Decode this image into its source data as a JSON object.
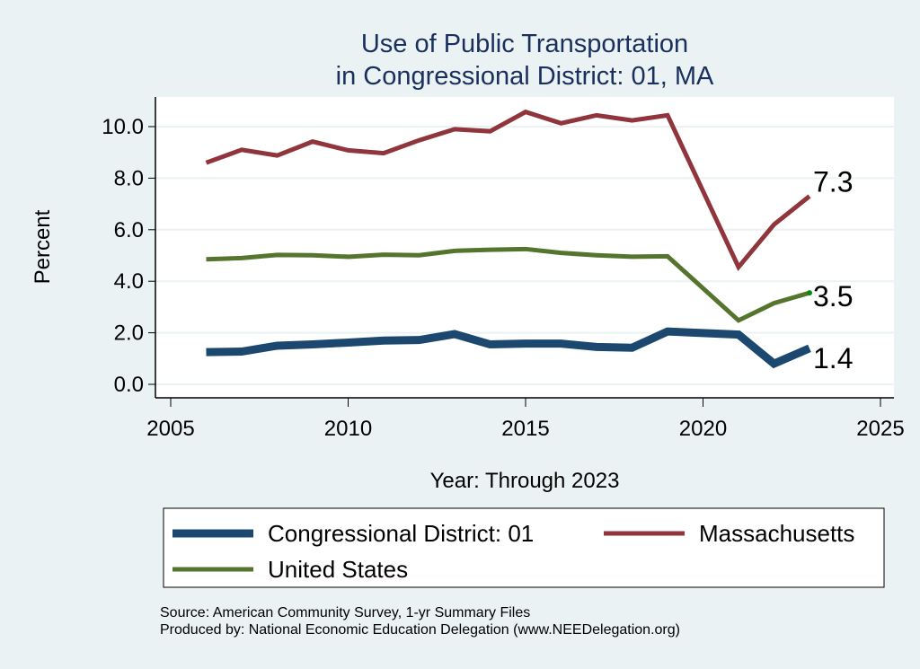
{
  "chart_data": {
    "type": "line",
    "title": [
      "Use of Public Transportation",
      "in Congressional District: 01, MA"
    ],
    "xlabel": "Year: Through 2023",
    "ylabel": "Percent",
    "xlim": [
      2005,
      2025
    ],
    "ylim": [
      0,
      10.5
    ],
    "xticks": [
      2005,
      2010,
      2015,
      2020,
      2025
    ],
    "yticks": [
      0,
      2,
      4,
      6,
      8,
      10
    ],
    "ytick_labels": [
      "0.0",
      "2.0",
      "4.0",
      "6.0",
      "8.0",
      "10.0"
    ],
    "grid": true,
    "legend_position": "bottom",
    "x": [
      2006,
      2007,
      2008,
      2009,
      2010,
      2011,
      2012,
      2013,
      2014,
      2015,
      2016,
      2017,
      2018,
      2019,
      2021,
      2022,
      2023
    ],
    "series": [
      {
        "name": "Congressional District: 01",
        "color": "#1c4870",
        "values": [
          1.25,
          1.27,
          1.5,
          1.55,
          1.62,
          1.7,
          1.72,
          1.95,
          1.55,
          1.58,
          1.58,
          1.45,
          1.42,
          2.05,
          1.93,
          0.8,
          1.4
        ],
        "end_label": "1.4"
      },
      {
        "name": "Massachusetts",
        "color": "#90353b",
        "values": [
          8.6,
          9.1,
          8.88,
          9.42,
          9.08,
          8.97,
          9.47,
          9.9,
          9.82,
          10.57,
          10.13,
          10.44,
          10.24,
          10.44,
          4.55,
          6.2,
          7.3
        ],
        "end_label": "7.3"
      },
      {
        "name": "United States",
        "color": "#55752f",
        "values": [
          4.85,
          4.9,
          5.02,
          5.01,
          4.95,
          5.03,
          5.01,
          5.18,
          5.22,
          5.25,
          5.1,
          5.01,
          4.95,
          4.97,
          2.48,
          3.15,
          3.55
        ],
        "end_label": "3.5"
      }
    ],
    "source_lines": [
      "Source: American Community Survey, 1-yr Summary Files",
      "Produced by: National Economic Education Delegation (www.NEEDelegation.org)"
    ]
  }
}
